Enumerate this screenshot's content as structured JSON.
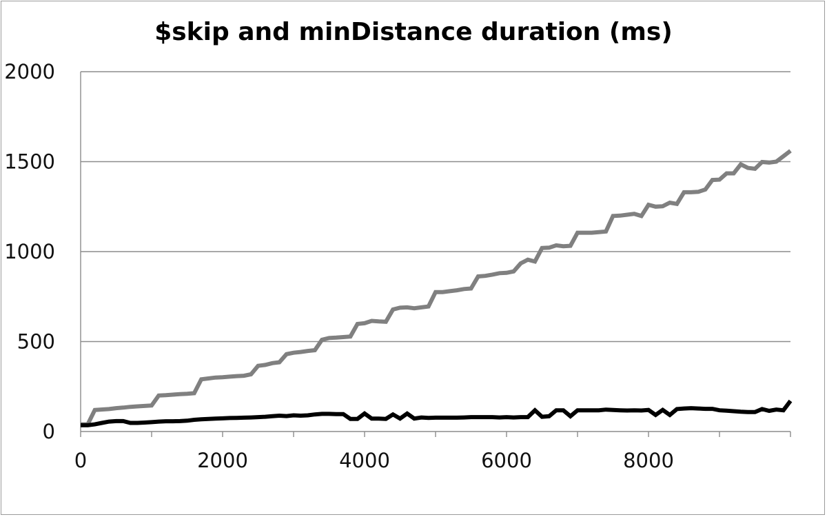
{
  "chart_data": {
    "type": "line",
    "title": "$skip and minDistance duration (ms)",
    "xlabel": "",
    "ylabel": "",
    "xlim": [
      0,
      10000
    ],
    "ylim": [
      0,
      2000
    ],
    "x_ticks": [
      0,
      2000,
      4000,
      6000,
      8000
    ],
    "y_ticks": [
      0,
      500,
      1000,
      1500,
      2000
    ],
    "x_tick_labels": [
      "0",
      "2000",
      "4000",
      "6000",
      "8000"
    ],
    "y_tick_labels": [
      "0",
      "500",
      "1000",
      "1500",
      "2000"
    ],
    "grid": {
      "horizontal": true,
      "vertical": false
    },
    "legend": "none",
    "series": [
      {
        "color": "#808080",
        "points": [
          [
            0,
            40
          ],
          [
            100,
            40
          ],
          [
            200,
            120
          ],
          [
            400,
            125
          ],
          [
            500,
            130
          ],
          [
            600,
            133
          ],
          [
            700,
            137
          ],
          [
            800,
            140
          ],
          [
            900,
            142
          ],
          [
            1000,
            145
          ],
          [
            1100,
            200
          ],
          [
            1200,
            202
          ],
          [
            1300,
            205
          ],
          [
            1400,
            208
          ],
          [
            1500,
            210
          ],
          [
            1600,
            213
          ],
          [
            1700,
            290
          ],
          [
            1800,
            295
          ],
          [
            1900,
            300
          ],
          [
            2000,
            302
          ],
          [
            2100,
            305
          ],
          [
            2200,
            308
          ],
          [
            2300,
            310
          ],
          [
            2400,
            318
          ],
          [
            2500,
            365
          ],
          [
            2600,
            370
          ],
          [
            2700,
            380
          ],
          [
            2800,
            385
          ],
          [
            2900,
            430
          ],
          [
            3000,
            438
          ],
          [
            3100,
            442
          ],
          [
            3200,
            448
          ],
          [
            3300,
            452
          ],
          [
            3400,
            510
          ],
          [
            3500,
            520
          ],
          [
            3600,
            522
          ],
          [
            3700,
            525
          ],
          [
            3800,
            528
          ],
          [
            3900,
            598
          ],
          [
            4000,
            602
          ],
          [
            4100,
            615
          ],
          [
            4200,
            612
          ],
          [
            4300,
            610
          ],
          [
            4400,
            678
          ],
          [
            4500,
            688
          ],
          [
            4600,
            690
          ],
          [
            4700,
            685
          ],
          [
            4800,
            690
          ],
          [
            4900,
            695
          ],
          [
            5000,
            775
          ],
          [
            5100,
            775
          ],
          [
            5200,
            780
          ],
          [
            5300,
            785
          ],
          [
            5400,
            792
          ],
          [
            5500,
            795
          ],
          [
            5600,
            862
          ],
          [
            5700,
            865
          ],
          [
            5800,
            872
          ],
          [
            5900,
            880
          ],
          [
            6000,
            882
          ],
          [
            6100,
            890
          ],
          [
            6200,
            935
          ],
          [
            6300,
            955
          ],
          [
            6400,
            945
          ],
          [
            6500,
            1020
          ],
          [
            6600,
            1022
          ],
          [
            6700,
            1035
          ],
          [
            6800,
            1030
          ],
          [
            6900,
            1032
          ],
          [
            7000,
            1105
          ],
          [
            7100,
            1105
          ],
          [
            7200,
            1105
          ],
          [
            7300,
            1108
          ],
          [
            7400,
            1112
          ],
          [
            7500,
            1198
          ],
          [
            7600,
            1200
          ],
          [
            7700,
            1205
          ],
          [
            7800,
            1210
          ],
          [
            7900,
            1198
          ],
          [
            8000,
            1260
          ],
          [
            8100,
            1250
          ],
          [
            8200,
            1252
          ],
          [
            8300,
            1272
          ],
          [
            8400,
            1265
          ],
          [
            8500,
            1330
          ],
          [
            8600,
            1330
          ],
          [
            8700,
            1332
          ],
          [
            8800,
            1345
          ],
          [
            8900,
            1398
          ],
          [
            9000,
            1400
          ],
          [
            9100,
            1435
          ],
          [
            9200,
            1435
          ],
          [
            9300,
            1485
          ],
          [
            9400,
            1465
          ],
          [
            9500,
            1460
          ],
          [
            9600,
            1498
          ],
          [
            9700,
            1495
          ],
          [
            9800,
            1500
          ],
          [
            9900,
            1530
          ],
          [
            10000,
            1560
          ]
        ]
      },
      {
        "color": "#000000",
        "points": [
          [
            0,
            35
          ],
          [
            100,
            35
          ],
          [
            200,
            40
          ],
          [
            300,
            48
          ],
          [
            400,
            55
          ],
          [
            500,
            58
          ],
          [
            600,
            58
          ],
          [
            700,
            48
          ],
          [
            800,
            48
          ],
          [
            900,
            50
          ],
          [
            1000,
            52
          ],
          [
            1100,
            55
          ],
          [
            1200,
            57
          ],
          [
            1300,
            57
          ],
          [
            1400,
            58
          ],
          [
            1500,
            60
          ],
          [
            1600,
            65
          ],
          [
            1700,
            68
          ],
          [
            1800,
            70
          ],
          [
            1900,
            72
          ],
          [
            2000,
            73
          ],
          [
            2100,
            75
          ],
          [
            2200,
            76
          ],
          [
            2300,
            77
          ],
          [
            2400,
            78
          ],
          [
            2500,
            80
          ],
          [
            2600,
            82
          ],
          [
            2700,
            85
          ],
          [
            2800,
            88
          ],
          [
            2900,
            86
          ],
          [
            3000,
            90
          ],
          [
            3100,
            88
          ],
          [
            3200,
            90
          ],
          [
            3300,
            95
          ],
          [
            3400,
            98
          ],
          [
            3500,
            98
          ],
          [
            3600,
            97
          ],
          [
            3700,
            97
          ],
          [
            3800,
            70
          ],
          [
            3900,
            70
          ],
          [
            4000,
            100
          ],
          [
            4100,
            72
          ],
          [
            4200,
            72
          ],
          [
            4300,
            70
          ],
          [
            4400,
            95
          ],
          [
            4500,
            72
          ],
          [
            4600,
            100
          ],
          [
            4700,
            72
          ],
          [
            4800,
            78
          ],
          [
            4900,
            76
          ],
          [
            5000,
            77
          ],
          [
            5100,
            77
          ],
          [
            5200,
            77
          ],
          [
            5300,
            77
          ],
          [
            5400,
            78
          ],
          [
            5500,
            80
          ],
          [
            5600,
            80
          ],
          [
            5700,
            80
          ],
          [
            5800,
            80
          ],
          [
            5900,
            78
          ],
          [
            6000,
            80
          ],
          [
            6100,
            78
          ],
          [
            6200,
            80
          ],
          [
            6300,
            80
          ],
          [
            6400,
            118
          ],
          [
            6500,
            82
          ],
          [
            6600,
            85
          ],
          [
            6700,
            118
          ],
          [
            6800,
            118
          ],
          [
            6900,
            85
          ],
          [
            7000,
            118
          ],
          [
            7100,
            118
          ],
          [
            7200,
            118
          ],
          [
            7300,
            118
          ],
          [
            7400,
            122
          ],
          [
            7500,
            120
          ],
          [
            7600,
            118
          ],
          [
            7700,
            117
          ],
          [
            7800,
            118
          ],
          [
            7900,
            117
          ],
          [
            8000,
            120
          ],
          [
            8100,
            92
          ],
          [
            8200,
            120
          ],
          [
            8300,
            92
          ],
          [
            8400,
            125
          ],
          [
            8500,
            128
          ],
          [
            8600,
            130
          ],
          [
            8700,
            128
          ],
          [
            8800,
            126
          ],
          [
            8900,
            126
          ],
          [
            9000,
            118
          ],
          [
            9100,
            116
          ],
          [
            9200,
            113
          ],
          [
            9300,
            110
          ],
          [
            9400,
            108
          ],
          [
            9500,
            108
          ],
          [
            9600,
            125
          ],
          [
            9700,
            115
          ],
          [
            9800,
            122
          ],
          [
            9900,
            118
          ],
          [
            10000,
            170
          ]
        ]
      }
    ]
  }
}
